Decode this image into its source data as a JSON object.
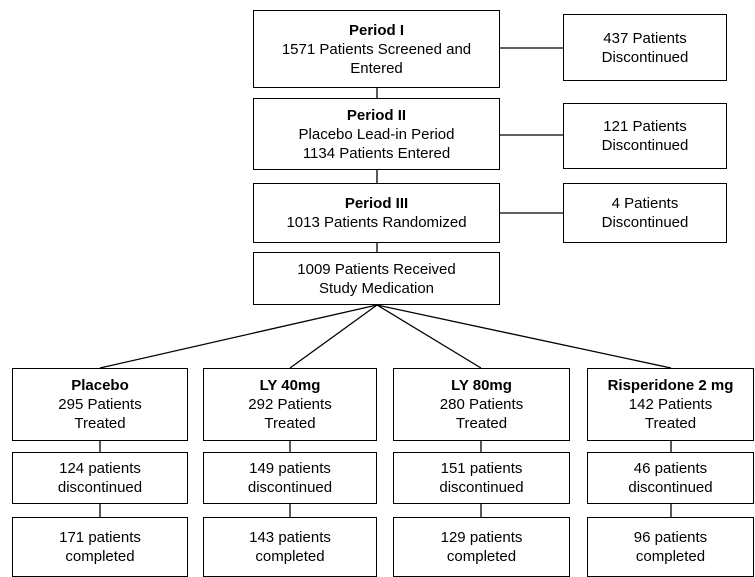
{
  "periods": [
    {
      "title": "Period I",
      "lines": [
        "1571 Patients Screened and",
        "Entered"
      ]
    },
    {
      "title": "Period II",
      "lines": [
        "Placebo Lead-in Period",
        "1134 Patients Entered"
      ]
    },
    {
      "title": "Period III",
      "lines": [
        "1013 Patients Randomized"
      ]
    }
  ],
  "discontinued": [
    {
      "lines": [
        "437 Patients",
        "Discontinued"
      ]
    },
    {
      "lines": [
        "121 Patients",
        "Discontinued"
      ]
    },
    {
      "lines": [
        "4 Patients",
        "Discontinued"
      ]
    }
  ],
  "medication": {
    "lines": [
      "1009 Patients Received",
      "Study Medication"
    ]
  },
  "arms": [
    {
      "title": "Placebo",
      "treated": [
        "295 Patients",
        "Treated"
      ],
      "discontinued": [
        "124 patients",
        "discontinued"
      ],
      "completed": [
        "171 patients",
        "completed"
      ]
    },
    {
      "title": "LY 40mg",
      "treated": [
        "292 Patients",
        "Treated"
      ],
      "discontinued": [
        "149 patients",
        "discontinued"
      ],
      "completed": [
        "143 patients",
        "completed"
      ]
    },
    {
      "title": "LY 80mg",
      "treated": [
        "280 Patients",
        "Treated"
      ],
      "discontinued": [
        "151 patients",
        "discontinued"
      ],
      "completed": [
        "129 patients",
        "completed"
      ]
    },
    {
      "title": "Risperidone 2 mg",
      "treated": [
        "142 Patients",
        "Treated"
      ],
      "discontinued": [
        "46 patients",
        "discontinued"
      ],
      "completed": [
        "96 patients",
        "completed"
      ]
    }
  ]
}
